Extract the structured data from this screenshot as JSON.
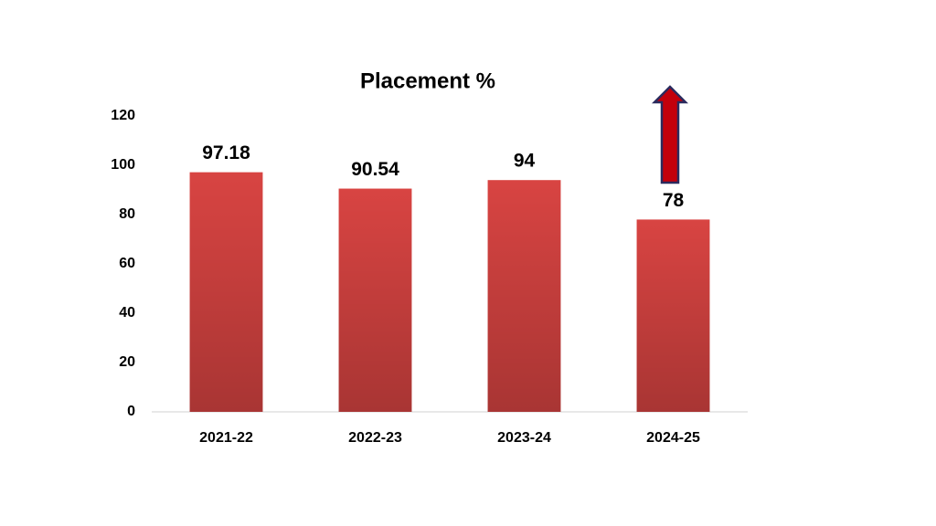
{
  "chart_data": {
    "type": "bar",
    "title": "Placement %",
    "categories": [
      "2021-22",
      "2022-23",
      "2023-24",
      "2024-25"
    ],
    "values": [
      97.18,
      90.54,
      94,
      78
    ],
    "color": "#d84442",
    "ylim": [
      0,
      120
    ],
    "yticks": [
      0,
      20,
      40,
      60,
      80,
      100,
      120
    ],
    "grid": false
  }
}
